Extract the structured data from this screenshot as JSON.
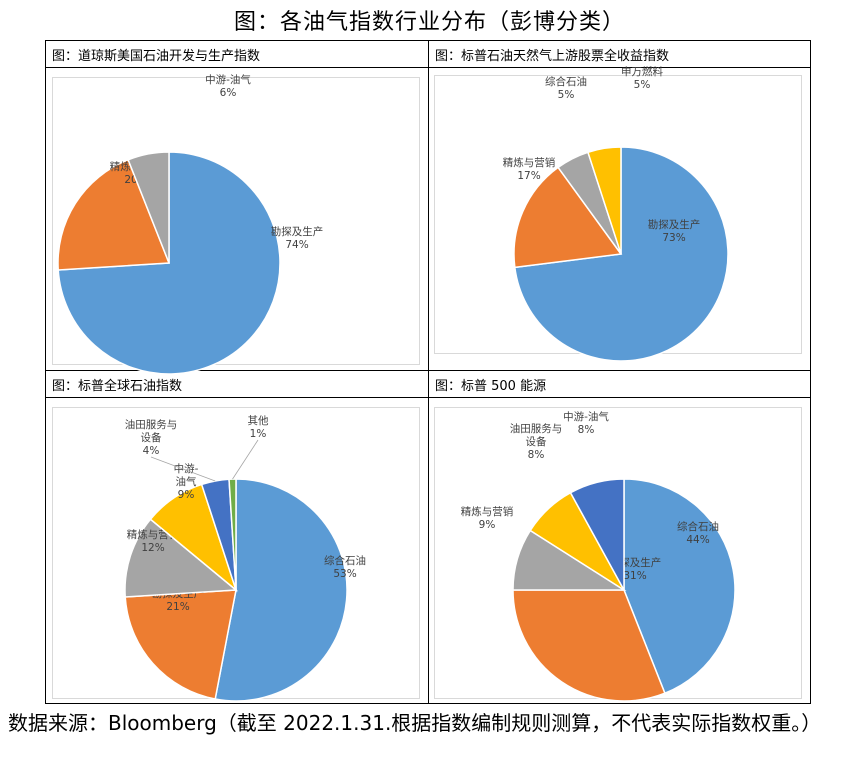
{
  "title": "图：各油气指数行业分布（彭博分类）",
  "footer": "数据来源：Bloomberg（截至 2022.1.31.根据指数编制规则测算，不代表实际指数权重。）",
  "chart_data": [
    {
      "type": "pie",
      "title": "图：道琼斯美国石油开发与生产指数",
      "slices": [
        {
          "label": [
            "勘探及生产"
          ],
          "value": 74,
          "pct": "74%",
          "color": "#5b9bd5"
        },
        {
          "label": [
            "精炼与营销"
          ],
          "value": 20,
          "pct": "20%",
          "color": "#ed7d31"
        },
        {
          "label": [
            "中游-油气"
          ],
          "value": 6,
          "pct": "6%",
          "color": "#a5a5a5"
        }
      ]
    },
    {
      "type": "pie",
      "title": "图：标普石油天然气上游股票全收益指数",
      "slices": [
        {
          "label": [
            "勘探及生产"
          ],
          "value": 73,
          "pct": "73%",
          "color": "#5b9bd5"
        },
        {
          "label": [
            "精炼与营销"
          ],
          "value": 17,
          "pct": "17%",
          "color": "#ed7d31"
        },
        {
          "label": [
            "综合石油"
          ],
          "value": 5,
          "pct": "5%",
          "color": "#a5a5a5"
        },
        {
          "label": [
            "申万燃料"
          ],
          "value": 5,
          "pct": "5%",
          "color": "#ffc000"
        }
      ]
    },
    {
      "type": "pie",
      "title": "图：标普全球石油指数",
      "slices": [
        {
          "label": [
            "综合石油"
          ],
          "value": 53,
          "pct": "53%",
          "color": "#5b9bd5"
        },
        {
          "label": [
            "勘探及生产"
          ],
          "value": 21,
          "pct": "21%",
          "color": "#ed7d31"
        },
        {
          "label": [
            "精炼与营销"
          ],
          "value": 12,
          "pct": "12%",
          "color": "#a5a5a5"
        },
        {
          "label": [
            "中游-",
            "油气"
          ],
          "value": 9,
          "pct": "9%",
          "color": "#ffc000"
        },
        {
          "label": [
            "油田服务与",
            "设备"
          ],
          "value": 4,
          "pct": "4%",
          "color": "#4472c4"
        },
        {
          "label": [
            "其他"
          ],
          "value": 1,
          "pct": "1%",
          "color": "#70ad47"
        }
      ]
    },
    {
      "type": "pie",
      "title": "图：标普 500 能源",
      "slices": [
        {
          "label": [
            "综合石油"
          ],
          "value": 44,
          "pct": "44%",
          "color": "#5b9bd5"
        },
        {
          "label": [
            "勘探及生产"
          ],
          "value": 31,
          "pct": "31%",
          "color": "#ed7d31"
        },
        {
          "label": [
            "精炼与营销"
          ],
          "value": 9,
          "pct": "9%",
          "color": "#a5a5a5"
        },
        {
          "label": [
            "油田服务与",
            "设备"
          ],
          "value": 8,
          "pct": "8%",
          "color": "#ffc000"
        },
        {
          "label": [
            "中游-油气"
          ],
          "value": 8,
          "pct": "8%",
          "color": "#4472c4"
        }
      ]
    }
  ]
}
